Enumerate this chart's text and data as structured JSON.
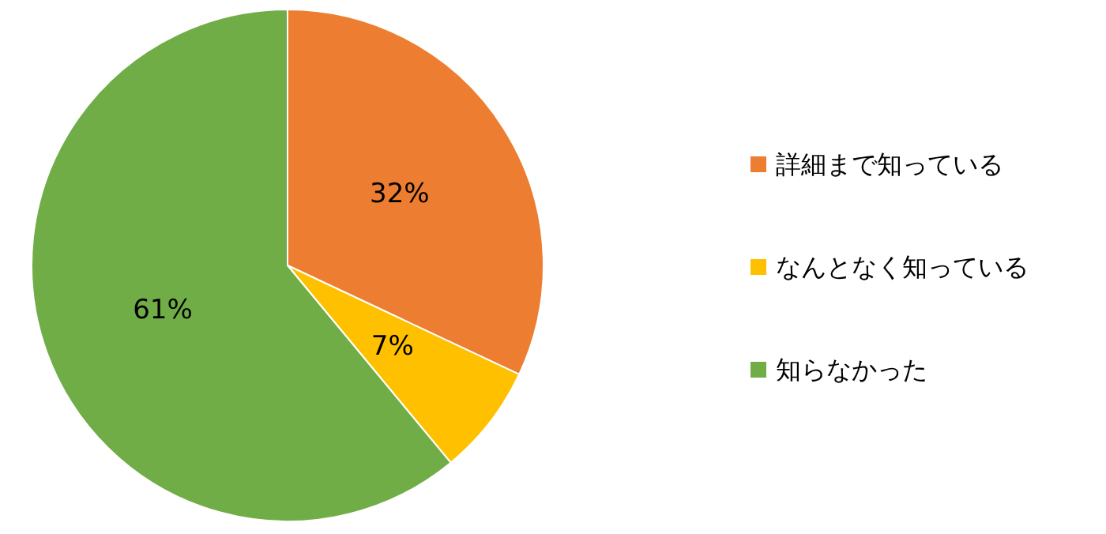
{
  "chart_data": {
    "type": "pie",
    "categories": [
      "詳細まで知っている",
      "なんとなく知っている",
      "知らなかった"
    ],
    "values": [
      32,
      7,
      61
    ],
    "colors": [
      "#ed7d31",
      "#ffc000",
      "#70ad47"
    ],
    "value_labels": [
      "32%",
      "7%",
      "61%"
    ],
    "legend": "right"
  }
}
